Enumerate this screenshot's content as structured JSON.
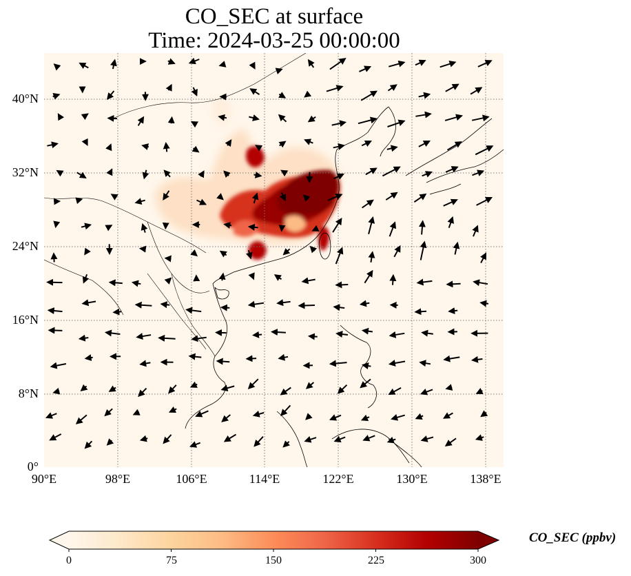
{
  "title": {
    "line1": "CO_SEC at surface",
    "line2": "Time: 2024-03-25 00:00:00"
  },
  "map": {
    "lon_range": [
      90,
      140
    ],
    "lat_range": [
      0,
      45
    ],
    "lat_ticks": [
      "40°N",
      "32°N",
      "24°N",
      "16°N",
      "8°N",
      "0°"
    ],
    "lon_ticks": [
      "90°E",
      "98°E",
      "106°E",
      "114°E",
      "122°E",
      "130°E",
      "138°E"
    ],
    "gridlines": true
  },
  "colorbar": {
    "label": "CO_SEC (ppbv)",
    "ticks": [
      "0",
      "75",
      "150",
      "225",
      "300"
    ],
    "min": 0,
    "max": 300,
    "extend": "both",
    "colormap": "OrRd",
    "colors": [
      "#fff7ec",
      "#fee8c8",
      "#fdd49e",
      "#fdbb84",
      "#fc8d59",
      "#ef6548",
      "#d7301f",
      "#b30000",
      "#7f0000"
    ]
  }
}
